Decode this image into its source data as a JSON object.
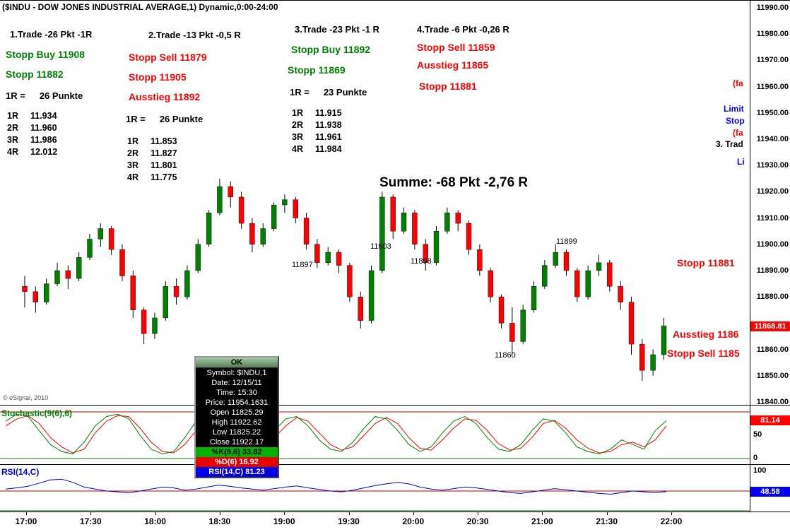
{
  "window": {
    "title": "($INDU - DOW JONES INDUSTRIAL AVERAGE,1) Dynamic,0:00-24:00",
    "copyright": "© eSignal, 2010"
  },
  "colors": {
    "up_candle": "#008000",
    "down_candle": "#ff0000",
    "stop_buy_green": "#008000",
    "stop_sell_red": "#ff0000",
    "annotation_blue": "#0000ff",
    "last_price_box": "#ff0000",
    "stoch_value_box": "#ff0000",
    "rsi_value_box": "#0000ee"
  },
  "summary": "Summe: -68 Pkt -2,76 R",
  "trades": [
    {
      "heading": "1.Trade -26 Pkt -1R",
      "stops": [
        "Stopp Buy 11908",
        "Stopp 11882"
      ],
      "risk_label": "1R =",
      "risk_value": "26 Punkte",
      "levels": [
        [
          "1R",
          "11.934"
        ],
        [
          "2R",
          "11.960"
        ],
        [
          "3R",
          "11.986"
        ],
        [
          "4R",
          "12.012"
        ]
      ]
    },
    {
      "heading": "2.Trade -13 Pkt -0,5 R",
      "stops": [
        "Stopp Sell 11879",
        "Stopp 11905",
        "Ausstieg 11892"
      ],
      "risk_label": "1R =",
      "risk_value": "26 Punkte",
      "levels": [
        [
          "1R",
          "11.853"
        ],
        [
          "2R",
          "11.827"
        ],
        [
          "3R",
          "11.801"
        ],
        [
          "4R",
          "11.775"
        ]
      ]
    },
    {
      "heading": "3.Trade -23 Pkt -1 R",
      "stops": [
        "Stopp Buy 11892",
        "Stopp 11869"
      ],
      "risk_label": "1R =",
      "risk_value": "23 Punkte",
      "levels": [
        [
          "1R",
          "11.915"
        ],
        [
          "2R",
          "11.938"
        ],
        [
          "3R",
          "11.961"
        ],
        [
          "4R",
          "11.984"
        ]
      ]
    },
    {
      "heading": "4.Trade -6 Pkt -0,26 R",
      "stops": [
        "Stopp Sell 11859",
        "Ausstieg 11865",
        "Stopp 11881"
      ]
    }
  ],
  "bar_labels": [
    "11897",
    "11903",
    "11898",
    "11899",
    "11860"
  ],
  "right_annotations": [
    "Stopp 11881",
    "Ausstieg 1186",
    "Stopp Sell 1185"
  ],
  "edge_annotations": [
    "(fa",
    "Limit",
    "Stop",
    "(fa",
    "3. Trad",
    "Li"
  ],
  "popup": {
    "button": "OK",
    "lines": [
      "Symbol: $INDU,1",
      "Date: 12/15/11",
      "Time: 15:30",
      "Price: 11954.1631",
      "Open 11825.29",
      "High 11922.62",
      "Low 11825.22",
      "Close 11922.17"
    ],
    "stoch_k": "%K(9,6) 33.82",
    "stoch_d": "%D(6) 16.92",
    "rsi": "RSI(14,C) 81.23"
  },
  "price_axis": {
    "labels": [
      "11990.00",
      "11980.00",
      "11970.00",
      "11960.00",
      "11950.00",
      "11940.00",
      "11930.00",
      "11920.00",
      "11910.00",
      "11900.00",
      "11890.00",
      "11880.00",
      "11860.00",
      "11850.00",
      "11840.00"
    ],
    "last_price": "11868.81"
  },
  "time_axis": [
    "17:00",
    "17:30",
    "18:00",
    "18:30",
    "19:00",
    "19:30",
    "20:00",
    "20:30",
    "21:00",
    "21:30",
    "22:00"
  ],
  "stochastic_panel": {
    "label": "Stochastic(9(6),6)",
    "value": "81.14",
    "scale_mid": "50",
    "scale_low": "0"
  },
  "rsi_panel": {
    "label": "RSI(14,C)",
    "value": "48.58",
    "scale_high": "100"
  },
  "chart_data": {
    "type": "bar",
    "subtype": "candlestick-with-oscillators",
    "symbol": "$INDU",
    "title": "DOW JONES INDUSTRIAL AVERAGE, 1-min dynamic session",
    "x_start": "17:00",
    "x_end": "22:00",
    "bar_interval_minutes": 5,
    "price_ylim": [
      11838.9,
      11987.9
    ],
    "price_gridstep": 10,
    "last_price": 11868.81,
    "candles_ohlc": [
      [
        11884,
        11888,
        11876,
        11882
      ],
      [
        11882,
        11884,
        11874,
        11878
      ],
      [
        11878,
        11887,
        11877,
        11885
      ],
      [
        11885,
        11893,
        11884,
        11890
      ],
      [
        11890,
        11892,
        11883,
        11887
      ],
      [
        11887,
        11897,
        11886,
        11895
      ],
      [
        11895,
        11904,
        11894,
        11902
      ],
      [
        11902,
        11908,
        11899,
        11906
      ],
      [
        11906,
        11907,
        11896,
        11898
      ],
      [
        11898,
        11900,
        11886,
        11888
      ],
      [
        11888,
        11890,
        11872,
        11875
      ],
      [
        11875,
        11876,
        11862,
        11866
      ],
      [
        11866,
        11874,
        11864,
        11872
      ],
      [
        11872,
        11886,
        11871,
        11884
      ],
      [
        11884,
        11887,
        11877,
        11880
      ],
      [
        11880,
        11892,
        11879,
        11890
      ],
      [
        11890,
        11902,
        11889,
        11900
      ],
      [
        11900,
        11913,
        11899,
        11912
      ],
      [
        11912,
        11925,
        11911,
        11922
      ],
      [
        11922,
        11924,
        11914,
        11918
      ],
      [
        11918,
        11920,
        11906,
        11908
      ],
      [
        11908,
        11910,
        11897,
        11900
      ],
      [
        11900,
        11908,
        11899,
        11906
      ],
      [
        11906,
        11916,
        11905,
        11915
      ],
      [
        11915,
        11919,
        11912,
        11917
      ],
      [
        11917,
        11918,
        11908,
        11910
      ],
      [
        11910,
        11912,
        11898,
        11900
      ],
      [
        11900,
        11902,
        11891,
        11893
      ],
      [
        11893,
        11899,
        11892,
        11897
      ],
      [
        11897,
        11898,
        11889,
        11892
      ],
      [
        11892,
        11893,
        11878,
        11880
      ],
      [
        11880,
        11882,
        11868,
        11871
      ],
      [
        11871,
        11892,
        11870,
        11890
      ],
      [
        11890,
        11920,
        11889,
        11918
      ],
      [
        11918,
        11919,
        11902,
        11905
      ],
      [
        11905,
        11914,
        11904,
        11912
      ],
      [
        11912,
        11913,
        11898,
        11900
      ],
      [
        11900,
        11902,
        11890,
        11893
      ],
      [
        11893,
        11907,
        11892,
        11905
      ],
      [
        11905,
        11914,
        11904,
        11912
      ],
      [
        11912,
        11913,
        11905,
        11908
      ],
      [
        11908,
        11909,
        11896,
        11898
      ],
      [
        11898,
        11900,
        11888,
        11890
      ],
      [
        11890,
        11891,
        11878,
        11880
      ],
      [
        11880,
        11881,
        11868,
        11870
      ],
      [
        11870,
        11876,
        11858,
        11863
      ],
      [
        11863,
        11877,
        11862,
        11875
      ],
      [
        11875,
        11886,
        11874,
        11884
      ],
      [
        11884,
        11894,
        11883,
        11892
      ],
      [
        11892,
        11900,
        11891,
        11897
      ],
      [
        11897,
        11898,
        11888,
        11890
      ],
      [
        11890,
        11891,
        11878,
        11880
      ],
      [
        11880,
        11892,
        11879,
        11890
      ],
      [
        11890,
        11896,
        11888,
        11893
      ],
      [
        11893,
        11894,
        11882,
        11884
      ],
      [
        11884,
        11886,
        11875,
        11878
      ],
      [
        11878,
        11880,
        11858,
        11862
      ],
      [
        11862,
        11864,
        11848,
        11852
      ],
      [
        11852,
        11860,
        11850,
        11858
      ],
      [
        11858,
        11872,
        11856,
        11869
      ]
    ],
    "oscillators": [
      {
        "name": "stochastic-k",
        "color": "#008000",
        "ylim": [
          0,
          100
        ],
        "values": [
          80,
          95,
          90,
          60,
          30,
          15,
          10,
          35,
          70,
          90,
          95,
          85,
          50,
          20,
          10,
          15,
          45,
          80,
          95,
          90,
          70,
          40,
          20,
          30,
          60,
          85,
          90,
          70,
          40,
          20,
          15,
          35,
          65,
          90,
          85,
          60,
          30,
          15,
          25,
          55,
          80,
          90,
          75,
          45,
          20,
          15,
          30,
          60,
          85,
          80,
          55,
          25,
          15,
          10,
          20,
          40,
          30,
          20,
          60,
          81
        ]
      },
      {
        "name": "stochastic-d",
        "color": "#ff0000",
        "ylim": [
          0,
          100
        ],
        "values": [
          70,
          85,
          92,
          75,
          45,
          25,
          12,
          20,
          55,
          80,
          92,
          90,
          65,
          35,
          15,
          12,
          30,
          60,
          88,
          92,
          80,
          55,
          30,
          25,
          45,
          70,
          88,
          80,
          55,
          30,
          18,
          25,
          50,
          75,
          88,
          75,
          45,
          22,
          18,
          40,
          65,
          85,
          82,
          60,
          32,
          18,
          22,
          45,
          75,
          82,
          65,
          40,
          22,
          12,
          15,
          30,
          35,
          25,
          40,
          70
        ]
      },
      {
        "name": "rsi",
        "color": "#0000cc",
        "ylim": [
          0,
          100
        ],
        "values": [
          55,
          58,
          62,
          70,
          78,
          80,
          72,
          60,
          55,
          50,
          48,
          45,
          50,
          55,
          60,
          58,
          52,
          55,
          60,
          65,
          62,
          58,
          55,
          52,
          56,
          60,
          63,
          58,
          54,
          50,
          48,
          52,
          58,
          64,
          68,
          72,
          68,
          60,
          55,
          52,
          56,
          60,
          58,
          54,
          50,
          46,
          44,
          48,
          52,
          56,
          53,
          50,
          47,
          44,
          42,
          46,
          50,
          48,
          46,
          48.58
        ]
      }
    ]
  }
}
